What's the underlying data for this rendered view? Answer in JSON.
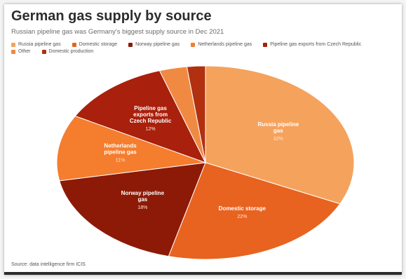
{
  "header": {
    "title": "German gas supply by source",
    "subtitle": "Russian pipeline gas was Germany's biggest supply source in Dec 2021"
  },
  "footer": {
    "source": "Source: data intelligence firm ICIS"
  },
  "chart_data": {
    "type": "pie",
    "legend_position": "top",
    "slices": [
      {
        "name": "Russia pipeline gas",
        "label": "Russia pipeline gas",
        "value": 32,
        "value_label": "32%",
        "color": "#f5a25d"
      },
      {
        "name": "Domestic storage",
        "label": "Domestic storage",
        "value": 22,
        "value_label": "22%",
        "color": "#e8631f"
      },
      {
        "name": "Norway pipeline gas",
        "label": "Norway pipeline gas",
        "value": 18,
        "value_label": "18%",
        "color": "#8c1a07"
      },
      {
        "name": "Netherlands pipeline gas",
        "label": "Netherlands pipeline gas",
        "value": 11,
        "value_label": "11%",
        "color": "#f47d2e"
      },
      {
        "name": "Pipeline gas exports from Czech Republic",
        "label": "Pipeline gas exports from Czech Republic",
        "value": 12,
        "value_label": "12%",
        "color": "#a9200c"
      },
      {
        "name": "Other",
        "label": "",
        "value": 3,
        "value_label": "",
        "color": "#f08a42"
      },
      {
        "name": "Domestic production",
        "label": "",
        "value": 2,
        "value_label": "",
        "color": "#b03010"
      }
    ]
  }
}
